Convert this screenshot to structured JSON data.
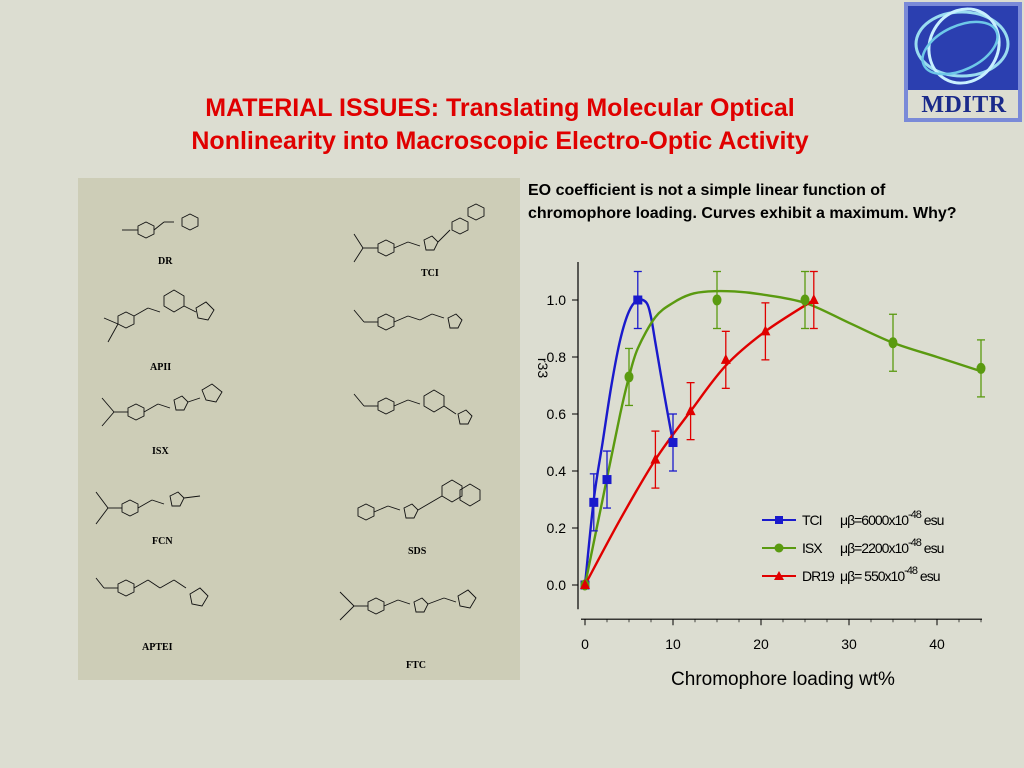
{
  "slide": {
    "title_line1": "MATERIAL ISSUES:  Translating Molecular Optical",
    "title_line2": "Nonlinearity into Macroscopic Electro-Optic Activity",
    "logo_text": "MDITR",
    "caption": "EO coefficient is not a simple linear function of chromophore loading.  Curves exhibit a maximum.  Why?"
  },
  "structures": {
    "labels": [
      "DR",
      "TCI",
      "APII",
      "ISX",
      "FCN",
      "SDS",
      "APTEI",
      "FTC"
    ]
  },
  "colors": {
    "title": "#e00000",
    "tci": "#1a1acc",
    "isx": "#5a9a10",
    "dr19": "#e00000",
    "background": "#dcddd1",
    "panel": "#cdcdb7"
  },
  "chart_data": {
    "type": "scatter",
    "xlabel": "Chromophore loading wt%",
    "ylabel": "r33",
    "xlim": [
      0,
      45
    ],
    "ylim": [
      -0.1,
      1.1
    ],
    "x_ticks": [
      0,
      10,
      20,
      30,
      40
    ],
    "y_ticks": [
      0.0,
      0.2,
      0.4,
      0.6,
      0.8,
      1.0
    ],
    "x_tick_labels": [
      "0",
      "10",
      "20",
      "30",
      "40"
    ],
    "y_tick_labels": [
      "0.0",
      "0.2",
      "0.4",
      "0.6",
      "0.8",
      "1.0"
    ],
    "grid": false,
    "legend_position": "lower-right",
    "series": [
      {
        "name": "TCI",
        "legend_text": "μβ=6000x10",
        "exponent": "-48",
        "unit": "esu",
        "color": "#1a1acc",
        "marker": "square",
        "x": [
          0,
          1,
          2.5,
          6,
          10
        ],
        "y": [
          0.0,
          0.29,
          0.37,
          1.0,
          0.5
        ],
        "err": [
          0,
          0.1,
          0.1,
          0.1,
          0.1
        ],
        "curve": [
          [
            0,
            0
          ],
          [
            1,
            0.3
          ],
          [
            2,
            0.5
          ],
          [
            3,
            0.7
          ],
          [
            4,
            0.86
          ],
          [
            5,
            0.96
          ],
          [
            6,
            1.0
          ],
          [
            7,
            0.99
          ],
          [
            7.5,
            0.94
          ],
          [
            8,
            0.85
          ],
          [
            9,
            0.67
          ],
          [
            10,
            0.5
          ]
        ]
      },
      {
        "name": "ISX",
        "legend_text": "μβ=2200x10",
        "exponent": "-48",
        "unit": "esu",
        "color": "#5a9a10",
        "marker": "circle",
        "x": [
          0,
          5,
          15,
          25,
          35,
          45
        ],
        "y": [
          0.0,
          0.73,
          1.0,
          1.0,
          0.85,
          0.76
        ],
        "err": [
          0,
          0.1,
          0.1,
          0.1,
          0.1,
          0.1
        ],
        "curve": [
          [
            0,
            0
          ],
          [
            2,
            0.3
          ],
          [
            4,
            0.6
          ],
          [
            5,
            0.73
          ],
          [
            6,
            0.83
          ],
          [
            8,
            0.94
          ],
          [
            10,
            0.99
          ],
          [
            12,
            1.02
          ],
          [
            14,
            1.03
          ],
          [
            17,
            1.03
          ],
          [
            20,
            1.02
          ],
          [
            25,
            0.99
          ],
          [
            30,
            0.92
          ],
          [
            35,
            0.85
          ],
          [
            40,
            0.8
          ],
          [
            45,
            0.75
          ]
        ]
      },
      {
        "name": "DR19",
        "legend_text": "μβ=  550x10",
        "exponent": "-48",
        "unit": "esu",
        "color": "#e00000",
        "marker": "triangle",
        "x": [
          0,
          8,
          12,
          16,
          20.5,
          26
        ],
        "y": [
          0.0,
          0.44,
          0.61,
          0.79,
          0.89,
          1.0
        ],
        "err": [
          0,
          0.1,
          0.1,
          0.1,
          0.1,
          0.1
        ],
        "curve": [
          [
            0,
            0
          ],
          [
            4,
            0.23
          ],
          [
            8,
            0.44
          ],
          [
            12,
            0.61
          ],
          [
            16,
            0.77
          ],
          [
            20.5,
            0.89
          ],
          [
            26,
            1.0
          ]
        ]
      }
    ]
  }
}
